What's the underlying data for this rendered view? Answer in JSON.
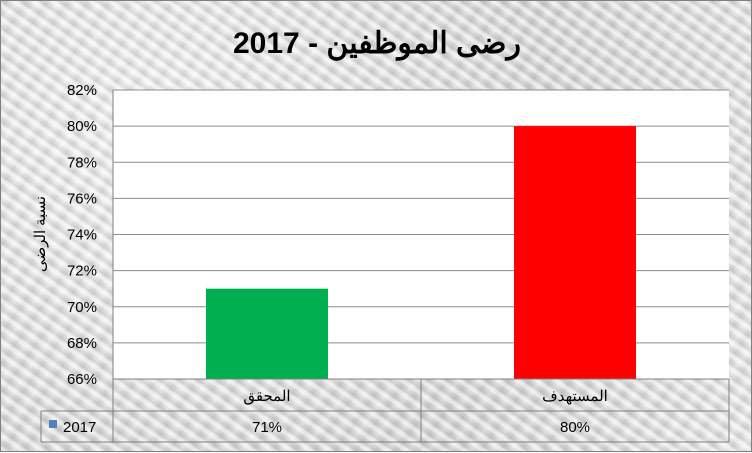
{
  "chart_data": {
    "type": "bar",
    "title": "رضى الموظفين - 2017",
    "ylabel": "نسبة الرضى",
    "xlabel": "",
    "categories": [
      "المستهدف",
      "المحقق"
    ],
    "series": [
      {
        "name": "2017",
        "values": [
          0.8,
          0.71
        ],
        "value_labels": [
          "80%",
          "71%"
        ],
        "colors": [
          "#ff0000",
          "#00b050"
        ]
      }
    ],
    "ylim": [
      0.66,
      0.82
    ],
    "yticks": [
      0.82,
      0.8,
      0.78,
      0.76,
      0.74,
      0.72,
      0.7,
      0.68,
      0.66
    ],
    "ytick_labels": [
      "82%",
      "80%",
      "78%",
      "76%",
      "74%",
      "72%",
      "70%",
      "68%",
      "66%"
    ],
    "legend_color": "#4f81bd",
    "grid": true,
    "data_table": true
  }
}
